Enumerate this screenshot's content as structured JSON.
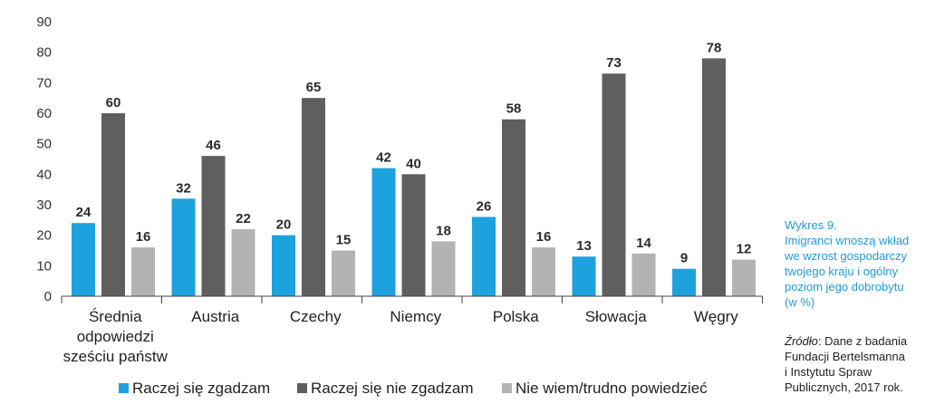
{
  "chart_data": {
    "type": "bar",
    "categories": [
      [
        "Średnia",
        "odpowiedzi",
        "sześciu państw"
      ],
      [
        "Austria"
      ],
      [
        "Czechy"
      ],
      [
        "Niemcy"
      ],
      [
        "Polska"
      ],
      [
        "Słowacja"
      ],
      [
        "Węgry"
      ]
    ],
    "series": [
      {
        "name": "Raczej się zgadzam",
        "color": "#1ea2de",
        "values": [
          24,
          32,
          20,
          42,
          26,
          13,
          9
        ]
      },
      {
        "name": "Raczej się nie zgadzam",
        "color": "#5f5f5f",
        "values": [
          60,
          46,
          65,
          40,
          58,
          73,
          78
        ]
      },
      {
        "name": "Nie wiem/trudno powiedzieć",
        "color": "#b3b3b3",
        "values": [
          16,
          22,
          15,
          18,
          16,
          14,
          12
        ]
      }
    ],
    "ylim": [
      0,
      90
    ],
    "yticks": [
      0,
      10,
      20,
      30,
      40,
      50,
      60,
      70,
      80,
      90
    ],
    "grid": false,
    "legend": "bottom"
  },
  "caption": {
    "lines": [
      "Wykres 9.",
      "Imigranci wnoszą wkład",
      "we wzrost gospodarczy",
      "twojego kraju i ogólny",
      "poziom jego dobrobytu",
      "(w %)"
    ]
  },
  "source": {
    "label": "Źródło",
    "lines": [
      ": Dane z badania",
      "Fundacji Bertelsmanna",
      "i Instytutu Spraw",
      "Publicznych, 2017 rok."
    ]
  }
}
